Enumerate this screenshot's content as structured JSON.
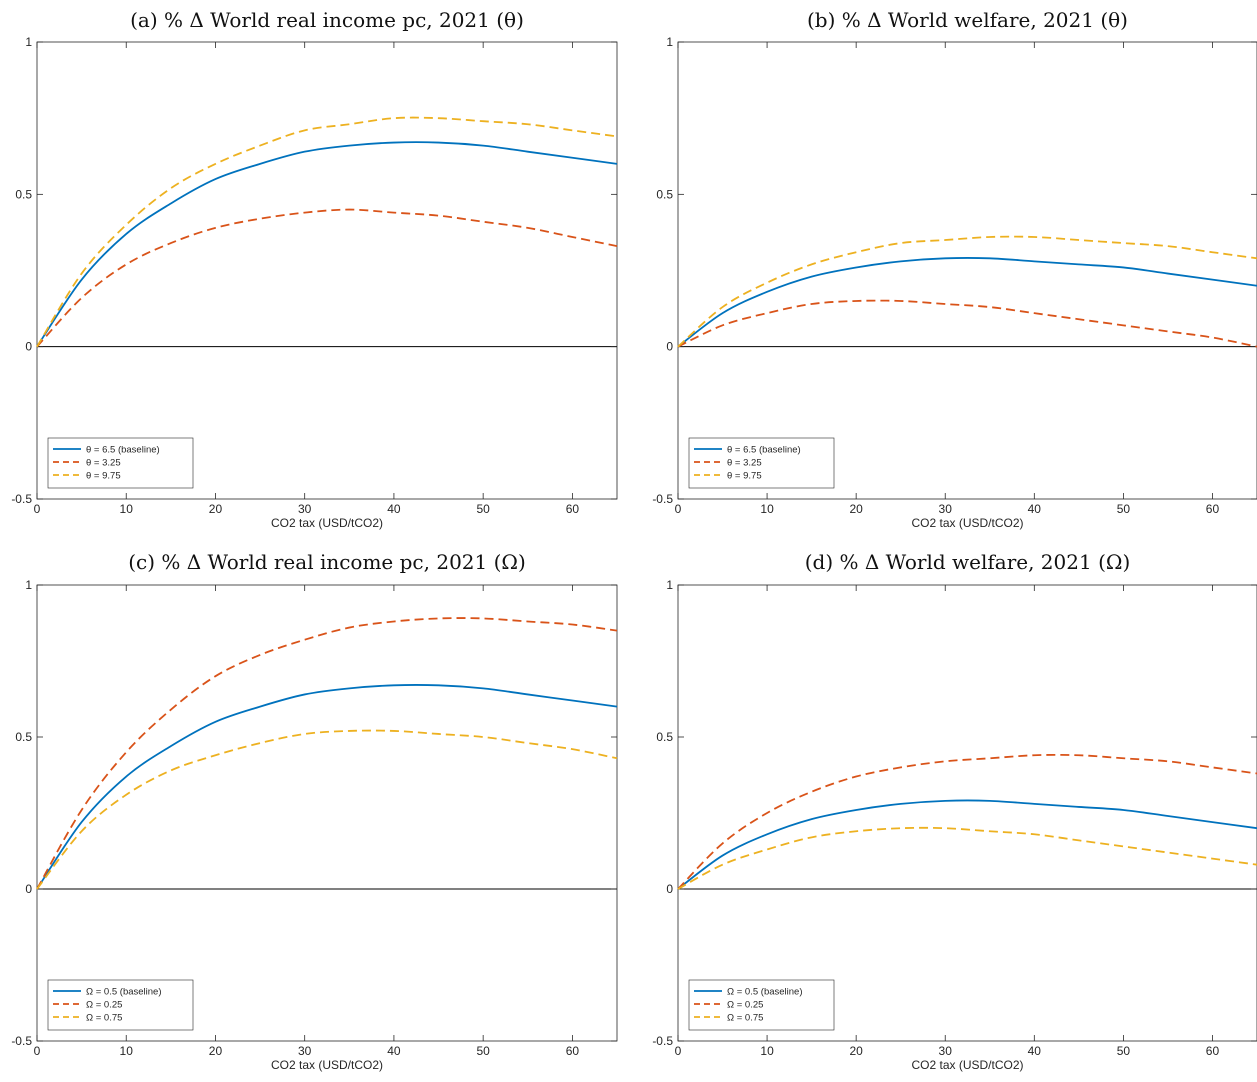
{
  "chart_data": [
    {
      "type": "line",
      "title": "(a) % Δ World real income pc, 2021 (θ)",
      "xlabel": "CO2 tax (USD/tCO2)",
      "ylabel": "",
      "xlim": [
        0,
        65
      ],
      "ylim": [
        -0.5,
        1
      ],
      "xticks": [
        "0",
        "10",
        "20",
        "30",
        "40",
        "50",
        "60"
      ],
      "yticks": [
        "-0.5",
        "0",
        "0.5",
        "1"
      ],
      "legend_position": "lower-left",
      "zero_line": true,
      "series": [
        {
          "name": "θ = 6.5 (baseline)",
          "color": "#0072BD",
          "dash": "solid",
          "x": [
            0,
            5,
            10,
            15,
            20,
            25,
            30,
            35,
            40,
            45,
            50,
            55,
            60,
            65
          ],
          "y": [
            0,
            0.22,
            0.37,
            0.47,
            0.55,
            0.6,
            0.64,
            0.66,
            0.67,
            0.67,
            0.66,
            0.64,
            0.62,
            0.6
          ]
        },
        {
          "name": "θ = 3.25",
          "color": "#D95319",
          "dash": "dashed",
          "x": [
            0,
            5,
            10,
            15,
            20,
            25,
            30,
            35,
            40,
            45,
            50,
            55,
            60,
            65
          ],
          "y": [
            0,
            0.16,
            0.27,
            0.34,
            0.39,
            0.42,
            0.44,
            0.45,
            0.44,
            0.43,
            0.41,
            0.39,
            0.36,
            0.33
          ]
        },
        {
          "name": "θ = 9.75",
          "color": "#EDB120",
          "dash": "dashed",
          "x": [
            0,
            5,
            10,
            15,
            20,
            25,
            30,
            35,
            40,
            45,
            50,
            55,
            60,
            65
          ],
          "y": [
            0,
            0.24,
            0.4,
            0.52,
            0.6,
            0.66,
            0.71,
            0.73,
            0.75,
            0.75,
            0.74,
            0.73,
            0.71,
            0.69
          ]
        }
      ]
    },
    {
      "type": "line",
      "title": "(b) % Δ World welfare, 2021 (θ)",
      "xlabel": "CO2 tax (USD/tCO2)",
      "ylabel": "",
      "xlim": [
        0,
        65
      ],
      "ylim": [
        -0.5,
        1
      ],
      "xticks": [
        "0",
        "10",
        "20",
        "30",
        "40",
        "50",
        "60"
      ],
      "yticks": [
        "-0.5",
        "0",
        "0.5",
        "1"
      ],
      "legend_position": "lower-left",
      "zero_line": true,
      "series": [
        {
          "name": "θ = 6.5 (baseline)",
          "color": "#0072BD",
          "dash": "solid",
          "x": [
            0,
            5,
            10,
            15,
            20,
            25,
            30,
            35,
            40,
            45,
            50,
            55,
            60,
            65
          ],
          "y": [
            0,
            0.11,
            0.18,
            0.23,
            0.26,
            0.28,
            0.29,
            0.29,
            0.28,
            0.27,
            0.26,
            0.24,
            0.22,
            0.2
          ]
        },
        {
          "name": "θ = 3.25",
          "color": "#D95319",
          "dash": "dashed",
          "x": [
            0,
            5,
            10,
            15,
            20,
            25,
            30,
            35,
            40,
            45,
            50,
            55,
            60,
            65
          ],
          "y": [
            0,
            0.07,
            0.11,
            0.14,
            0.15,
            0.15,
            0.14,
            0.13,
            0.11,
            0.09,
            0.07,
            0.05,
            0.03,
            0.0
          ]
        },
        {
          "name": "θ = 9.75",
          "color": "#EDB120",
          "dash": "dashed",
          "x": [
            0,
            5,
            10,
            15,
            20,
            25,
            30,
            35,
            40,
            45,
            50,
            55,
            60,
            65
          ],
          "y": [
            0,
            0.13,
            0.21,
            0.27,
            0.31,
            0.34,
            0.35,
            0.36,
            0.36,
            0.35,
            0.34,
            0.33,
            0.31,
            0.29
          ]
        }
      ]
    },
    {
      "type": "line",
      "title": "(c) % Δ World real income pc, 2021 (Ω)",
      "xlabel": "CO2 tax (USD/tCO2)",
      "ylabel": "",
      "xlim": [
        0,
        65
      ],
      "ylim": [
        -0.5,
        1
      ],
      "xticks": [
        "0",
        "10",
        "20",
        "30",
        "40",
        "50",
        "60"
      ],
      "yticks": [
        "-0.5",
        "0",
        "0.5",
        "1"
      ],
      "legend_position": "lower-left",
      "zero_line": true,
      "series": [
        {
          "name": "Ω = 0.5 (baseline)",
          "color": "#0072BD",
          "dash": "solid",
          "x": [
            0,
            5,
            10,
            15,
            20,
            25,
            30,
            35,
            40,
            45,
            50,
            55,
            60,
            65
          ],
          "y": [
            0,
            0.22,
            0.37,
            0.47,
            0.55,
            0.6,
            0.64,
            0.66,
            0.67,
            0.67,
            0.66,
            0.64,
            0.62,
            0.6
          ]
        },
        {
          "name": "Ω = 0.25",
          "color": "#D95319",
          "dash": "dashed",
          "x": [
            0,
            5,
            10,
            15,
            20,
            25,
            30,
            35,
            40,
            45,
            50,
            55,
            60,
            65
          ],
          "y": [
            0,
            0.26,
            0.45,
            0.59,
            0.7,
            0.77,
            0.82,
            0.86,
            0.88,
            0.89,
            0.89,
            0.88,
            0.87,
            0.85
          ]
        },
        {
          "name": "Ω = 0.75",
          "color": "#EDB120",
          "dash": "dashed",
          "x": [
            0,
            5,
            10,
            15,
            20,
            25,
            30,
            35,
            40,
            45,
            50,
            55,
            60,
            65
          ],
          "y": [
            0,
            0.19,
            0.31,
            0.39,
            0.44,
            0.48,
            0.51,
            0.52,
            0.52,
            0.51,
            0.5,
            0.48,
            0.46,
            0.43
          ]
        }
      ]
    },
    {
      "type": "line",
      "title": "(d) % Δ World welfare, 2021 (Ω)",
      "xlabel": "CO2 tax (USD/tCO2)",
      "ylabel": "",
      "xlim": [
        0,
        65
      ],
      "ylim": [
        -0.5,
        1
      ],
      "xticks": [
        "0",
        "10",
        "20",
        "30",
        "40",
        "50",
        "60"
      ],
      "yticks": [
        "-0.5",
        "0",
        "0.5",
        "1"
      ],
      "legend_position": "lower-left",
      "zero_line": true,
      "series": [
        {
          "name": "Ω = 0.5 (baseline)",
          "color": "#0072BD",
          "dash": "solid",
          "x": [
            0,
            5,
            10,
            15,
            20,
            25,
            30,
            35,
            40,
            45,
            50,
            55,
            60,
            65
          ],
          "y": [
            0,
            0.11,
            0.18,
            0.23,
            0.26,
            0.28,
            0.29,
            0.29,
            0.28,
            0.27,
            0.26,
            0.24,
            0.22,
            0.2
          ]
        },
        {
          "name": "Ω = 0.25",
          "color": "#D95319",
          "dash": "dashed",
          "x": [
            0,
            5,
            10,
            15,
            20,
            25,
            30,
            35,
            40,
            45,
            50,
            55,
            60,
            65
          ],
          "y": [
            0,
            0.15,
            0.25,
            0.32,
            0.37,
            0.4,
            0.42,
            0.43,
            0.44,
            0.44,
            0.43,
            0.42,
            0.4,
            0.38
          ]
        },
        {
          "name": "Ω = 0.75",
          "color": "#EDB120",
          "dash": "dashed",
          "x": [
            0,
            5,
            10,
            15,
            20,
            25,
            30,
            35,
            40,
            45,
            50,
            55,
            60,
            65
          ],
          "y": [
            0,
            0.08,
            0.13,
            0.17,
            0.19,
            0.2,
            0.2,
            0.19,
            0.18,
            0.16,
            0.14,
            0.12,
            0.1,
            0.08
          ]
        }
      ]
    }
  ]
}
